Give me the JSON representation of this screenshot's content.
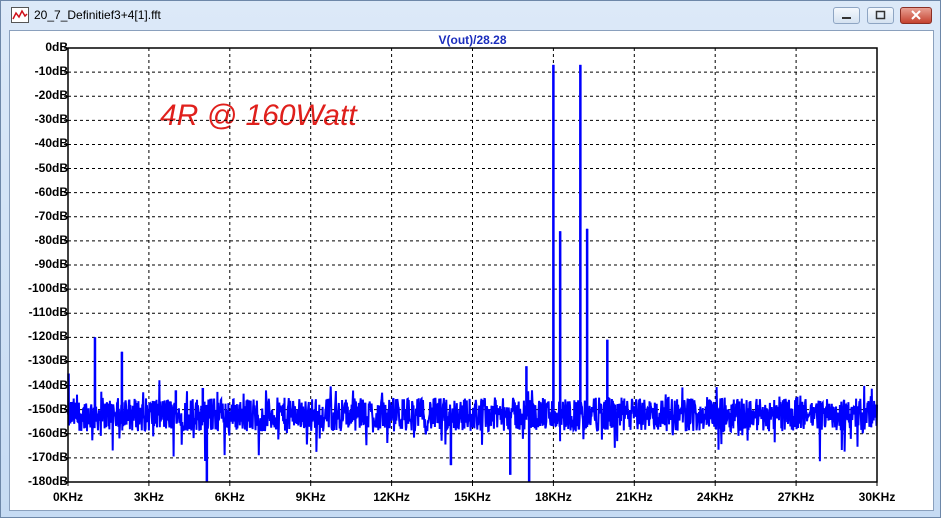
{
  "window": {
    "title": "20_7_Definitief3+4[1].fft"
  },
  "chart_data": {
    "type": "line",
    "title": "V(out)/28.28",
    "annotation": "4R @ 160Watt",
    "xlim": [
      0,
      30
    ],
    "ylim": [
      -180,
      0
    ],
    "x_unit": "KHz",
    "y_unit": "dB",
    "xticks": [
      "0KHz",
      "3KHz",
      "6KHz",
      "9KHz",
      "12KHz",
      "15KHz",
      "18KHz",
      "21KHz",
      "24KHz",
      "27KHz",
      "30KHz"
    ],
    "yticks": [
      "0dB",
      "-10dB",
      "-20dB",
      "-30dB",
      "-40dB",
      "-50dB",
      "-60dB",
      "-70dB",
      "-80dB",
      "-90dB",
      "-100dB",
      "-110dB",
      "-120dB",
      "-130dB",
      "-140dB",
      "-150dB",
      "-160dB",
      "-170dB",
      "-180dB"
    ],
    "grid": true,
    "series": [
      {
        "color": "#0000ff",
        "noise_floor_db": -152,
        "peaks": [
          {
            "x": 0.02,
            "y": -135
          },
          {
            "x": 1.0,
            "y": -120
          },
          {
            "x": 2.0,
            "y": -126
          },
          {
            "x": 4.0,
            "y": -142
          },
          {
            "x": 5.0,
            "y": -141
          },
          {
            "x": 17.0,
            "y": -132
          },
          {
            "x": 18.0,
            "y": -7
          },
          {
            "x": 18.25,
            "y": -76
          },
          {
            "x": 19.0,
            "y": -7
          },
          {
            "x": 19.25,
            "y": -75
          },
          {
            "x": 20.0,
            "y": -121
          }
        ],
        "dips": [
          {
            "x": 5.15,
            "y": -180
          },
          {
            "x": 17.1,
            "y": -180
          },
          {
            "x": 16.4,
            "y": -177
          },
          {
            "x": 14.2,
            "y": -173
          }
        ]
      }
    ]
  }
}
